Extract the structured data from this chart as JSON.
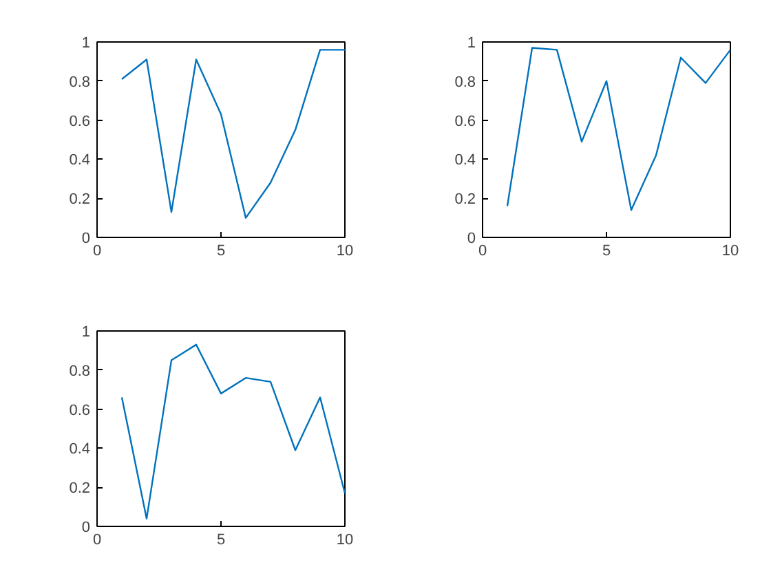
{
  "chart_data": [
    {
      "type": "line",
      "x": [
        1,
        2,
        3,
        4,
        5,
        6,
        7,
        8,
        9,
        10
      ],
      "series": [
        {
          "color": "#0072bd",
          "values": [
            0.81,
            0.91,
            0.13,
            0.91,
            0.63,
            0.1,
            0.28,
            0.55,
            0.96,
            0.96
          ]
        }
      ],
      "xlim": [
        0,
        10
      ],
      "ylim": [
        0,
        1
      ],
      "xticks": [
        0,
        5,
        10
      ],
      "yticks": [
        0,
        0.2,
        0.4,
        0.6,
        0.8,
        1
      ]
    },
    {
      "type": "line",
      "x": [
        1,
        2,
        3,
        4,
        5,
        6,
        7,
        8,
        9,
        10
      ],
      "series": [
        {
          "color": "#0072bd",
          "values": [
            0.16,
            0.97,
            0.96,
            0.49,
            0.8,
            0.14,
            0.42,
            0.92,
            0.79,
            0.96
          ]
        }
      ],
      "xlim": [
        0,
        10
      ],
      "ylim": [
        0,
        1
      ],
      "xticks": [
        0,
        5,
        10
      ],
      "yticks": [
        0,
        0.2,
        0.4,
        0.6,
        0.8,
        1
      ]
    },
    {
      "type": "line",
      "x": [
        1,
        2,
        3,
        4,
        5,
        6,
        7,
        8,
        9,
        10
      ],
      "series": [
        {
          "color": "#0072bd",
          "values": [
            0.66,
            0.04,
            0.85,
            0.93,
            0.68,
            0.76,
            0.74,
            0.39,
            0.66,
            0.17
          ]
        }
      ],
      "xlim": [
        0,
        10
      ],
      "ylim": [
        0,
        1
      ],
      "xticks": [
        0,
        5,
        10
      ],
      "yticks": [
        0,
        0.2,
        0.4,
        0.6,
        0.8,
        1
      ]
    }
  ]
}
